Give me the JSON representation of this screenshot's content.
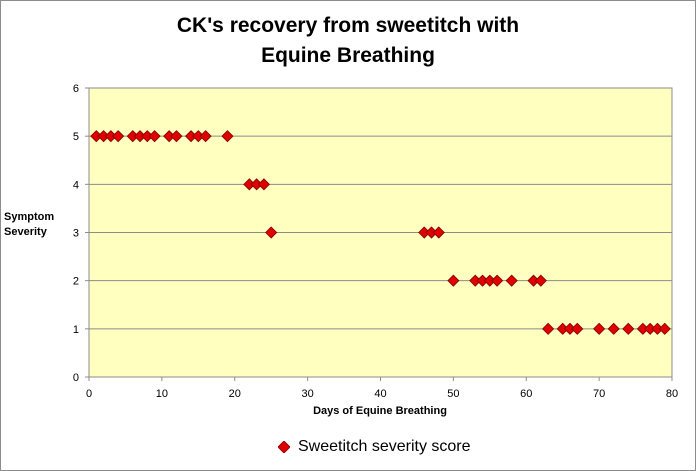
{
  "chart_data": {
    "type": "scatter",
    "title": [
      "CK's recovery from sweetitch with",
      "Equine Breathing"
    ],
    "xlabel": "Days  of Equine Breathing",
    "ylabel": [
      "Symptom",
      "Severity"
    ],
    "xlim": [
      0,
      80
    ],
    "ylim": [
      0,
      6
    ],
    "x_ticks": [
      "0",
      "10",
      "20",
      "30",
      "40",
      "50",
      "60",
      "70",
      "80"
    ],
    "y_ticks": [
      "0",
      "1",
      "2",
      "3",
      "4",
      "5",
      "6"
    ],
    "grid": "horizontal",
    "legend_position": "bottom",
    "plot_background": "#ffffc0",
    "marker_color": "#e00000",
    "series": [
      {
        "name": "Sweetitch severity score",
        "points": [
          [
            1,
            5
          ],
          [
            2,
            5
          ],
          [
            3,
            5
          ],
          [
            4,
            5
          ],
          [
            6,
            5
          ],
          [
            7,
            5
          ],
          [
            8,
            5
          ],
          [
            9,
            5
          ],
          [
            11,
            5
          ],
          [
            12,
            5
          ],
          [
            14,
            5
          ],
          [
            15,
            5
          ],
          [
            16,
            5
          ],
          [
            19,
            5
          ],
          [
            22,
            4
          ],
          [
            23,
            4
          ],
          [
            24,
            4
          ],
          [
            25,
            3
          ],
          [
            46,
            3
          ],
          [
            47,
            3
          ],
          [
            48,
            3
          ],
          [
            50,
            2
          ],
          [
            53,
            2
          ],
          [
            54,
            2
          ],
          [
            55,
            2
          ],
          [
            56,
            2
          ],
          [
            58,
            2
          ],
          [
            61,
            2
          ],
          [
            62,
            2
          ],
          [
            63,
            1
          ],
          [
            65,
            1
          ],
          [
            66,
            1
          ],
          [
            67,
            1
          ],
          [
            70,
            1
          ],
          [
            72,
            1
          ],
          [
            74,
            1
          ],
          [
            76,
            1
          ],
          [
            77,
            1
          ],
          [
            78,
            1
          ],
          [
            79,
            1
          ]
        ]
      }
    ]
  }
}
